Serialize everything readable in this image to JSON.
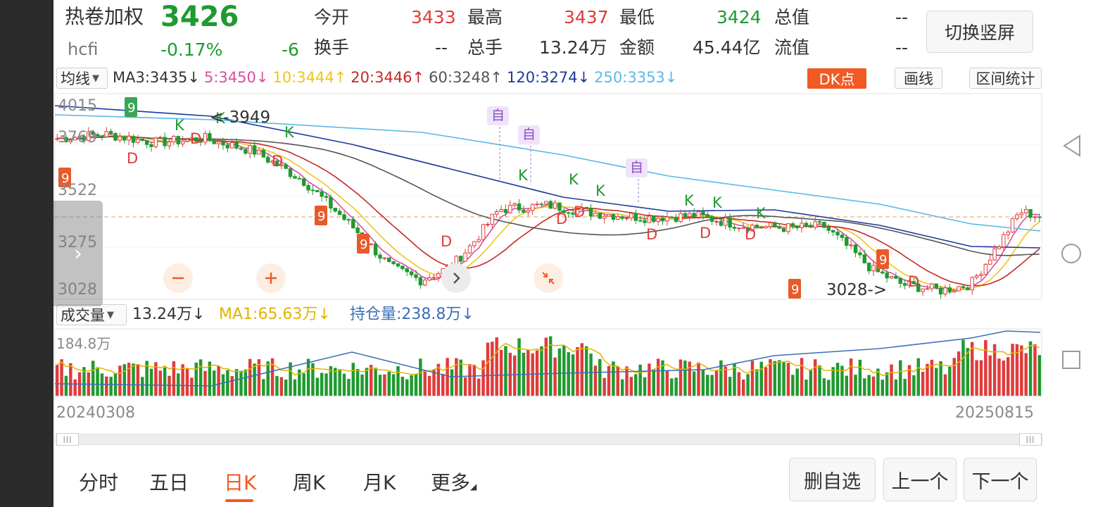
{
  "header": {
    "name": "热卷加权",
    "code": "hcfi",
    "price": "3426",
    "change_pct": "-0.17%",
    "change": "-6",
    "switch_button": "切换竖屏"
  },
  "quote_grid": {
    "col1": [
      {
        "label": "今开",
        "value": "3433",
        "tone": "red"
      },
      {
        "label": "换手",
        "value": "--",
        "tone": "dark"
      }
    ],
    "col2": [
      {
        "label": "最高",
        "value": "3437",
        "tone": "red"
      },
      {
        "label": "总手",
        "value": "13.24万",
        "tone": "dark"
      }
    ],
    "col3": [
      {
        "label": "最低",
        "value": "3424",
        "tone": "green"
      },
      {
        "label": "金额",
        "value": "45.44亿",
        "tone": "dark"
      }
    ],
    "col4": [
      {
        "label": "总值",
        "value": "--",
        "tone": "dark"
      },
      {
        "label": "流值",
        "value": "--",
        "tone": "dark"
      }
    ]
  },
  "ma_bar": {
    "selector": "均线",
    "items": [
      {
        "text": "MA3:3435",
        "arrow": "↓",
        "color": "#333333"
      },
      {
        "text": "5:3450",
        "arrow": "↓",
        "color": "#d94fa0"
      },
      {
        "text": "10:3444",
        "arrow": "↑",
        "color": "#f0c419"
      },
      {
        "text": "20:3446",
        "arrow": "↑",
        "color": "#c62828"
      },
      {
        "text": "60:3248",
        "arrow": "↑",
        "color": "#555555"
      },
      {
        "text": "120:3274",
        "arrow": "↓",
        "color": "#1a3a9a"
      },
      {
        "text": "250:3353",
        "arrow": "↓",
        "color": "#5bb8e8"
      }
    ],
    "dk_button": "DK点",
    "draw_button": "画线",
    "stats_button": "区间统计"
  },
  "price_axis": {
    "labels": [
      "4015",
      "3769",
      "3522",
      "3275",
      "3028"
    ],
    "min": 3028,
    "max": 4015
  },
  "annotations": {
    "high_label": "<-3949",
    "low_label": "3028->",
    "self_tags": [
      "自",
      "自",
      "自"
    ],
    "k_marker": "K",
    "d_marker": "D",
    "nine_marker": "9"
  },
  "volume_bar": {
    "selector": "成交量",
    "volume": "13.24万",
    "volume_arrow": "↓",
    "ma1": "MA1:65.63万",
    "ma1_arrow": "↓",
    "oi": "持仓量:238.8万",
    "oi_arrow": "↓",
    "axis_top": "184.8万"
  },
  "date_axis": {
    "start": "20240308",
    "end": "20250815"
  },
  "tabs": [
    {
      "label": "分时",
      "active": false
    },
    {
      "label": "五日",
      "active": false
    },
    {
      "label": "日K",
      "active": true
    },
    {
      "label": "周K",
      "active": false
    },
    {
      "label": "月K",
      "active": false
    },
    {
      "label": "更多",
      "active": false
    }
  ],
  "actions": {
    "remove_fav": "删自选",
    "prev": "上一个",
    "next": "下一个"
  },
  "colors": {
    "up": "#e03b3b",
    "down": "#1f9a2f",
    "accent": "#f15a22",
    "current_price_line": "#d9a066"
  },
  "nav_icons": [
    "back-triangle-icon",
    "home-circle-icon",
    "recents-square-icon"
  ]
}
